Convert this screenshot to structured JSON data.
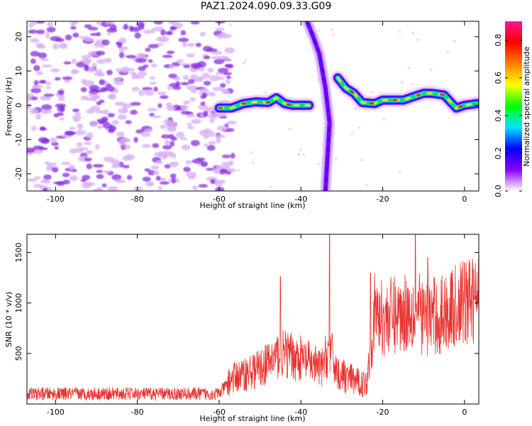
{
  "title": "PAZ1.2024.090.09.33.G09",
  "colors": {
    "snr_line": "#e8322e",
    "noise": "#8a2be2",
    "noise_light": "#d9b3f5",
    "colormap": [
      "#ffffff",
      "#8a00ff",
      "#0000ff",
      "#00e5ff",
      "#00ff00",
      "#ffff00",
      "#ff7f00",
      "#ff0000",
      "#ff1493"
    ]
  },
  "chart_data": [
    {
      "type": "heatmap",
      "title": "PAZ1.2024.090.09.33.G09",
      "xlabel": "Height of straight line (km)",
      "ylabel": "Frequency (Hz)",
      "xlim": [
        -107,
        3.5
      ],
      "ylim": [
        -25,
        24.5
      ],
      "xticks": [
        -100,
        -80,
        -60,
        -40,
        -20,
        0
      ],
      "yticks": [
        -20,
        -10,
        0,
        10,
        20
      ],
      "colorbar": {
        "label": "Normalized spectral amplitude",
        "range": [
          0,
          0.9
        ],
        "ticks": [
          0.0,
          0.2,
          0.4,
          0.6,
          0.8
        ]
      },
      "ridge_segments": [
        {
          "height_km": [
            -60,
            -57,
            -54,
            -51,
            -48,
            -46,
            -44,
            -42,
            -40,
            -38
          ],
          "freq_hz": [
            -0.8,
            -0.8,
            0.5,
            1.0,
            0.8,
            2.2,
            0.5,
            0.0,
            0.0,
            0.0
          ]
        },
        {
          "height_km": [
            -31,
            -29,
            -27,
            -25,
            -22,
            -20,
            -15,
            -10,
            -8,
            -5,
            -2,
            0,
            3
          ],
          "freq_hz": [
            8.0,
            5.0,
            3.5,
            0.8,
            0.5,
            1.5,
            1.5,
            3.5,
            3.5,
            3.0,
            -0.8,
            0.0,
            0.5
          ]
        }
      ],
      "crossing_streak": {
        "height_km": [
          -34,
          -33.5,
          -33,
          -34,
          -35.5,
          -37,
          -38.5
        ],
        "freq_hz": [
          -25,
          -15,
          -5,
          5,
          15,
          20,
          24.5
        ]
      },
      "noise_region_height_km": [
        -107,
        -58
      ]
    },
    {
      "type": "line",
      "xlabel": "Height of straight line (km)",
      "ylabel": "SNR (10 * v/v)",
      "xlim": [
        -107,
        3.5
      ],
      "ylim": [
        0,
        1680
      ],
      "xticks": [
        -100,
        -80,
        -60,
        -40,
        -20,
        0
      ],
      "yticks": [
        500,
        1000,
        1500
      ],
      "snr_trend": {
        "height_km": [
          -107,
          -60,
          -57,
          -50,
          -45,
          -40,
          -35,
          -33,
          -31,
          -25,
          -24,
          -22,
          -20,
          -15,
          -12,
          -10,
          -5,
          0,
          3.5
        ],
        "snr": [
          100,
          100,
          250,
          350,
          500,
          450,
          350,
          550,
          300,
          200,
          200,
          900,
          850,
          900,
          950,
          850,
          900,
          1000,
          1050
        ]
      },
      "snr_peaks": [
        {
          "height_km": -45,
          "snr": 1260
        },
        {
          "height_km": -33,
          "snr": 1680
        },
        {
          "height_km": -23,
          "snr": 1300
        },
        {
          "height_km": -12,
          "snr": 1690
        },
        {
          "height_km": -9,
          "snr": 1450
        },
        {
          "height_km": -6,
          "snr": 500
        },
        {
          "height_km": 0,
          "snr": 1400
        }
      ]
    }
  ]
}
